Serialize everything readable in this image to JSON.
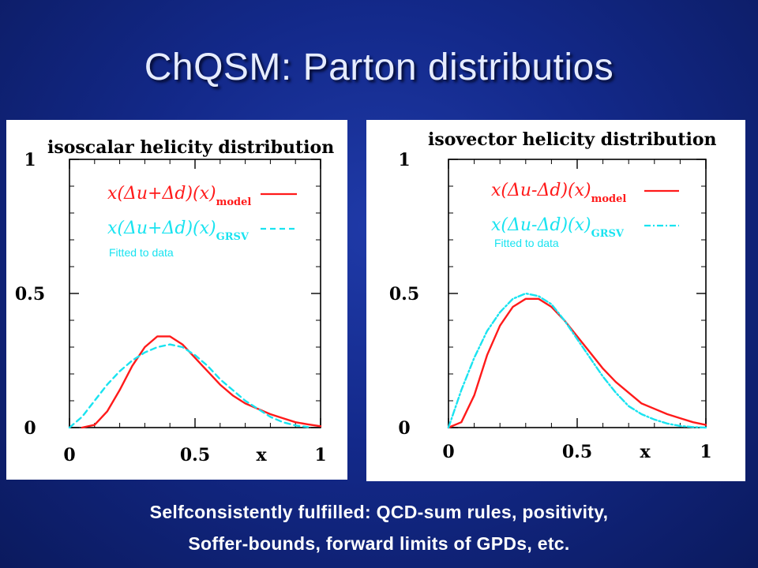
{
  "slide": {
    "title": "ChQSM: Parton distributios",
    "caption_line1": "Selfconsistently fulfilled: QCD-sum rules, positivity,",
    "caption_line2": "Soffer-bounds, forward limits of GPDs, etc."
  },
  "colors": {
    "model": "#ff1a1a",
    "grsv": "#19e3f0",
    "background": "#13298a"
  },
  "chart_data": [
    {
      "type": "line",
      "title": "isoscalar helicity distribution",
      "xlabel": "x",
      "ylabel": "",
      "xlim": [
        0,
        1
      ],
      "ylim": [
        0,
        1
      ],
      "x_ticks": [
        "0",
        "0.5",
        "1"
      ],
      "y_ticks": [
        "0",
        "0.5",
        "1"
      ],
      "legend_position": "top-right",
      "annotation": "Fitted to data",
      "series": [
        {
          "name": "x(Δu+Δd)(x)model",
          "legend_main": "x(Δu+Δd)(x)",
          "legend_sub": "model",
          "color": "#ff1a1a",
          "dash": "solid",
          "x": [
            0.05,
            0.1,
            0.15,
            0.2,
            0.25,
            0.3,
            0.35,
            0.4,
            0.45,
            0.5,
            0.55,
            0.6,
            0.65,
            0.7,
            0.75,
            0.8,
            0.85,
            0.9,
            0.95,
            1.0
          ],
          "y": [
            0.0,
            0.01,
            0.06,
            0.14,
            0.23,
            0.3,
            0.34,
            0.34,
            0.31,
            0.26,
            0.21,
            0.16,
            0.12,
            0.09,
            0.07,
            0.05,
            0.035,
            0.02,
            0.012,
            0.005
          ]
        },
        {
          "name": "x(Δu+Δd)(x)GRSV",
          "legend_main": "x(Δu+Δd)(x)",
          "legend_sub": "GRSV",
          "color": "#19e3f0",
          "dash": "dash",
          "x": [
            0.0,
            0.05,
            0.1,
            0.15,
            0.2,
            0.25,
            0.3,
            0.35,
            0.4,
            0.45,
            0.5,
            0.55,
            0.6,
            0.65,
            0.7,
            0.75,
            0.8,
            0.85,
            0.9,
            0.95
          ],
          "y": [
            0.0,
            0.04,
            0.1,
            0.16,
            0.21,
            0.25,
            0.28,
            0.3,
            0.31,
            0.3,
            0.27,
            0.23,
            0.18,
            0.14,
            0.1,
            0.07,
            0.04,
            0.02,
            0.008,
            0.002
          ]
        }
      ]
    },
    {
      "type": "line",
      "title": "isovector helicity distribution",
      "xlabel": "x",
      "ylabel": "",
      "xlim": [
        0,
        1
      ],
      "ylim": [
        0,
        1
      ],
      "x_ticks": [
        "0",
        "0.5",
        "1"
      ],
      "y_ticks": [
        "0",
        "0.5",
        "1"
      ],
      "legend_position": "top-right",
      "annotation": "Fitted to data",
      "series": [
        {
          "name": "x(Δu-Δd)(x)model",
          "legend_main": "x(Δu-Δd)(x)",
          "legend_sub": "model",
          "color": "#ff1a1a",
          "dash": "solid",
          "x": [
            0.0,
            0.05,
            0.1,
            0.15,
            0.2,
            0.25,
            0.3,
            0.35,
            0.4,
            0.45,
            0.5,
            0.55,
            0.6,
            0.65,
            0.7,
            0.75,
            0.8,
            0.85,
            0.9,
            0.95,
            1.0
          ],
          "y": [
            0.0,
            0.02,
            0.12,
            0.27,
            0.38,
            0.45,
            0.48,
            0.48,
            0.45,
            0.4,
            0.34,
            0.28,
            0.22,
            0.17,
            0.13,
            0.09,
            0.07,
            0.05,
            0.035,
            0.02,
            0.01
          ]
        },
        {
          "name": "x(Δu-Δd)(x)GRSV",
          "legend_main": "x(Δu-Δd)(x)",
          "legend_sub": "GRSV",
          "color": "#19e3f0",
          "dash": "dashdot",
          "x": [
            0.0,
            0.05,
            0.1,
            0.15,
            0.2,
            0.25,
            0.3,
            0.35,
            0.4,
            0.45,
            0.5,
            0.55,
            0.6,
            0.65,
            0.7,
            0.75,
            0.8,
            0.85,
            0.9,
            0.95,
            1.0
          ],
          "y": [
            0.0,
            0.14,
            0.26,
            0.36,
            0.43,
            0.48,
            0.5,
            0.49,
            0.46,
            0.4,
            0.33,
            0.26,
            0.19,
            0.13,
            0.08,
            0.05,
            0.03,
            0.015,
            0.006,
            0.002,
            0.0
          ]
        }
      ]
    }
  ]
}
